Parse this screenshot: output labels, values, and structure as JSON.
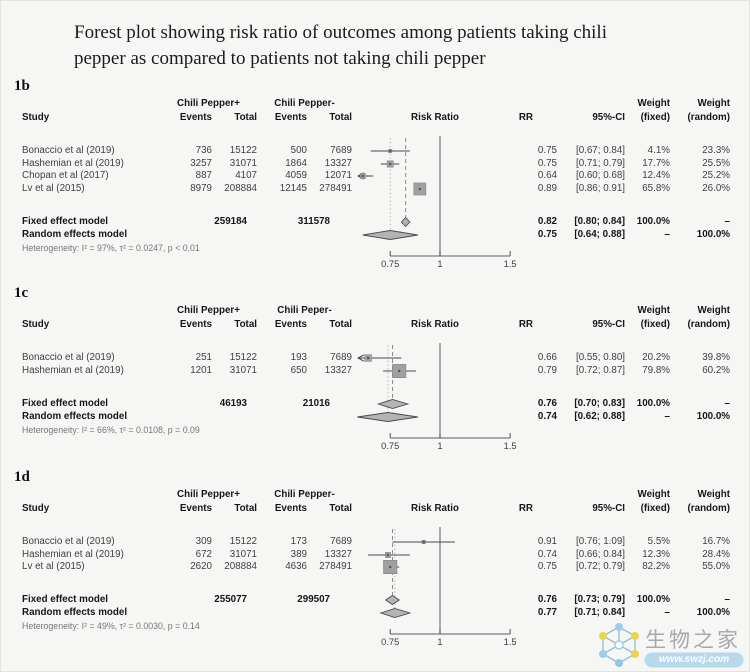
{
  "title": {
    "line1": "Forest plot showing risk ratio of outcomes among patients taking chili",
    "line2": "pepper as compared to patients not taking chili pepper"
  },
  "watermark": {
    "site_name": "生物之家",
    "url": "www.swzj.com",
    "pill_color": "#b7d9ea",
    "node_blue": "#9fcde8",
    "node_yellow": "#ecd44a"
  },
  "chart_data": [
    {
      "type": "forest",
      "panel_label": "1b",
      "group1_header": "Chili Pepper+",
      "group2_header": "Chili Pepper-",
      "columns": {
        "study": "Study",
        "events": "Events",
        "total": "Total",
        "risk_ratio": "Risk Ratio",
        "rr": "RR",
        "ci": "95%-CI",
        "weight": "Weight",
        "weight_fixed": "(fixed)",
        "weight_random": "(random)"
      },
      "studies": [
        {
          "name": "Bonaccio et al (2019)",
          "events1": "736",
          "total1": "15122",
          "events2": "500",
          "total2": "7689",
          "rr": 0.75,
          "ci_lo": 0.67,
          "ci_hi": 0.84,
          "rr_text": "0.75",
          "ci_text": "[0.67; 0.84]",
          "w_fixed": "4.1%",
          "w_random": "23.3%"
        },
        {
          "name": "Hashemian et al (2019)",
          "events1": "3257",
          "total1": "31071",
          "events2": "1864",
          "total2": "13327",
          "rr": 0.75,
          "ci_lo": 0.71,
          "ci_hi": 0.79,
          "rr_text": "0.75",
          "ci_text": "[0.71; 0.79]",
          "w_fixed": "17.7%",
          "w_random": "25.5%"
        },
        {
          "name": "Chopan et al (2017)",
          "events1": "887",
          "total1": "4107",
          "events2": "4059",
          "total2": "12071",
          "rr": 0.64,
          "ci_lo": 0.6,
          "ci_hi": 0.68,
          "rr_text": "0.64",
          "ci_text": "[0.60; 0.68]",
          "w_fixed": "12.4%",
          "w_random": "25.2%"
        },
        {
          "name": "Lv et al (2015)",
          "events1": "8979",
          "total1": "208884",
          "events2": "12145",
          "total2": "278491",
          "rr": 0.89,
          "ci_lo": 0.86,
          "ci_hi": 0.91,
          "rr_text": "0.89",
          "ci_text": "[0.86; 0.91]",
          "w_fixed": "65.8%",
          "w_random": "26.0%"
        }
      ],
      "fixed": {
        "label": "Fixed effect model",
        "total1": "259184",
        "total2": "311578",
        "rr": 0.82,
        "ci_lo": 0.8,
        "ci_hi": 0.84,
        "rr_text": "0.82",
        "ci_text": "[0.80; 0.84]",
        "w_fixed": "100.0%",
        "w_random": "–"
      },
      "random": {
        "label": "Random effects model",
        "rr": 0.75,
        "ci_lo": 0.64,
        "ci_hi": 0.88,
        "rr_text": "0.75",
        "ci_text": "[0.64; 0.88]",
        "w_fixed": "–",
        "w_random": "100.0%"
      },
      "heterogeneity": "Heterogeneity: I² = 97%, τ² = 0.0247, p < 0.01",
      "axis_ticks": [
        0.75,
        1,
        1.5
      ],
      "axis_tick_labels": [
        "0.75",
        "1",
        "1.5"
      ],
      "scale": "log"
    },
    {
      "type": "forest",
      "panel_label": "1c",
      "group1_header": "Chili Pepper+",
      "group2_header": "Chili Peper-",
      "columns": {
        "study": "Study",
        "events": "Events",
        "total": "Total",
        "risk_ratio": "Risk Ratio",
        "rr": "RR",
        "ci": "95%-CI",
        "weight": "Weight",
        "weight_fixed": "(fixed)",
        "weight_random": "(random)"
      },
      "studies": [
        {
          "name": "Bonaccio et al (2019)",
          "events1": "251",
          "total1": "15122",
          "events2": "193",
          "total2": "7689",
          "rr": 0.66,
          "ci_lo": 0.55,
          "ci_hi": 0.8,
          "rr_text": "0.66",
          "ci_text": "[0.55; 0.80]",
          "w_fixed": "20.2%",
          "w_random": "39.8%"
        },
        {
          "name": "Hashemian et al (2019)",
          "events1": "1201",
          "total1": "31071",
          "events2": "650",
          "total2": "13327",
          "rr": 0.79,
          "ci_lo": 0.72,
          "ci_hi": 0.87,
          "rr_text": "0.79",
          "ci_text": "[0.72; 0.87]",
          "w_fixed": "79.8%",
          "w_random": "60.2%"
        }
      ],
      "fixed": {
        "label": "Fixed effect model",
        "total1": "46193",
        "total2": "21016",
        "rr": 0.76,
        "ci_lo": 0.7,
        "ci_hi": 0.83,
        "rr_text": "0.76",
        "ci_text": "[0.70; 0.83]",
        "w_fixed": "100.0%",
        "w_random": "–"
      },
      "random": {
        "label": "Random effects model",
        "rr": 0.74,
        "ci_lo": 0.62,
        "ci_hi": 0.88,
        "rr_text": "0.74",
        "ci_text": "[0.62; 0.88]",
        "w_fixed": "–",
        "w_random": "100.0%"
      },
      "heterogeneity": "Heterogeneity: I² = 66%, τ² = 0.0108, p = 0.09",
      "axis_ticks": [
        0.75,
        1,
        1.5
      ],
      "axis_tick_labels": [
        "0.75",
        "1",
        "1.5"
      ],
      "scale": "log"
    },
    {
      "type": "forest",
      "panel_label": "1d",
      "group1_header": "Chili Pepper+",
      "group2_header": "Chili Pepper-",
      "columns": {
        "study": "Study",
        "events": "Events",
        "total": "Total",
        "risk_ratio": "Risk Ratio",
        "rr": "RR",
        "ci": "95%-CI",
        "weight": "Weight",
        "weight_fixed": "(fixed)",
        "weight_random": "(random)"
      },
      "studies": [
        {
          "name": "Bonaccio et al (2019)",
          "events1": "309",
          "total1": "15122",
          "events2": "173",
          "total2": "7689",
          "rr": 0.91,
          "ci_lo": 0.76,
          "ci_hi": 1.09,
          "rr_text": "0.91",
          "ci_text": "[0.76; 1.09]",
          "w_fixed": "5.5%",
          "w_random": "16.7%"
        },
        {
          "name": "Hashemian et al (2019)",
          "events1": "672",
          "total1": "31071",
          "events2": "389",
          "total2": "13327",
          "rr": 0.74,
          "ci_lo": 0.66,
          "ci_hi": 0.84,
          "rr_text": "0.74",
          "ci_text": "[0.66; 0.84]",
          "w_fixed": "12.3%",
          "w_random": "28.4%"
        },
        {
          "name": "Lv et al (2015)",
          "events1": "2620",
          "total1": "208884",
          "events2": "4636",
          "total2": "278491",
          "rr": 0.75,
          "ci_lo": 0.72,
          "ci_hi": 0.79,
          "rr_text": "0.75",
          "ci_text": "[0.72; 0.79]",
          "w_fixed": "82.2%",
          "w_random": "55.0%"
        }
      ],
      "fixed": {
        "label": "Fixed effect model",
        "total1": "255077",
        "total2": "299507",
        "rr": 0.76,
        "ci_lo": 0.73,
        "ci_hi": 0.79,
        "rr_text": "0.76",
        "ci_text": "[0.73; 0.79]",
        "w_fixed": "100.0%",
        "w_random": "–"
      },
      "random": {
        "label": "Random effects model",
        "rr": 0.77,
        "ci_lo": 0.71,
        "ci_hi": 0.84,
        "rr_text": "0.77",
        "ci_text": "[0.71; 0.84]",
        "w_fixed": "–",
        "w_random": "100.0%"
      },
      "heterogeneity": "Heterogeneity: I² = 49%, τ² = 0.0030, p = 0.14",
      "axis_ticks": [
        0.75,
        1,
        1.5
      ],
      "axis_tick_labels": [
        "0.75",
        "1",
        "1.5"
      ],
      "scale": "log"
    }
  ]
}
